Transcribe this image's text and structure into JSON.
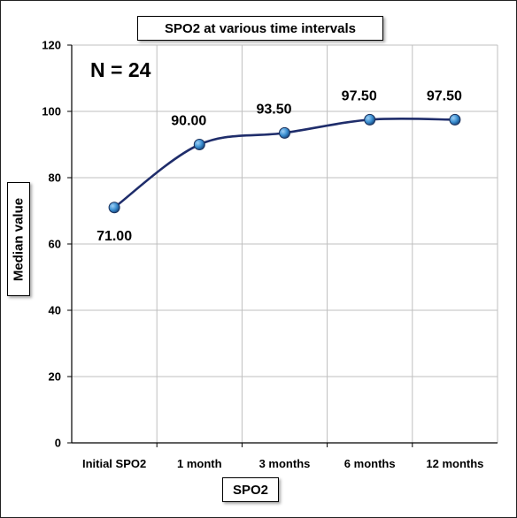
{
  "chart_data": {
    "type": "line",
    "title": "SPO2 at various time intervals",
    "annotation": "N = 24",
    "xlabel": "SPO2",
    "ylabel": "Median value",
    "categories": [
      "Initial SPO2",
      "1 month",
      "3 months",
      "6 months",
      "12 months"
    ],
    "series": [
      {
        "values": [
          71.0,
          90.0,
          93.5,
          97.5,
          97.5
        ]
      }
    ],
    "data_labels": [
      "71.00",
      "90.00",
      "93.50",
      "97.50",
      "97.50"
    ],
    "ylim": [
      0,
      120
    ],
    "yticks": [
      0,
      20,
      40,
      60,
      80,
      100,
      120
    ],
    "grid": true,
    "line_color": "#1f2d6b",
    "marker_color": "#3a8ed0"
  }
}
